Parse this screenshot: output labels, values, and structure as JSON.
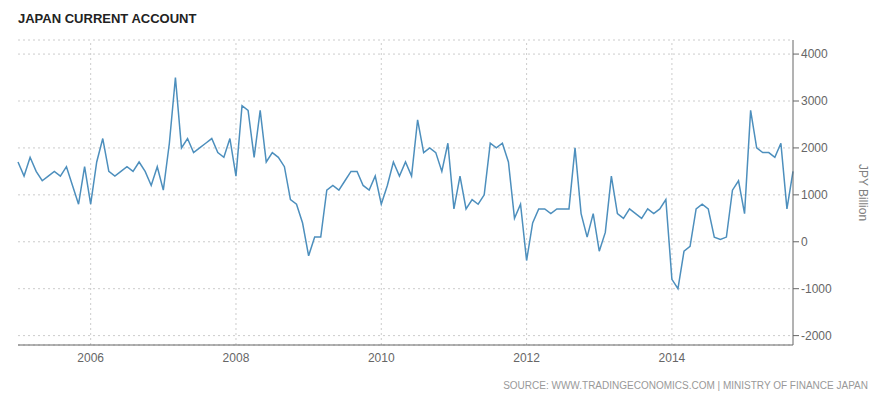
{
  "chart_data": {
    "type": "line",
    "title": "JAPAN CURRENT ACCOUNT",
    "ylabel": "JPY Billion",
    "annotations": [
      "SOURCE: WWW.TRADINGECONOMICS.COM | MINISTRY OF FINANCE JAPAN"
    ],
    "color": "#4d8fbd",
    "grid": true,
    "ylim": [
      -2200,
      4300
    ],
    "yticks": [
      -2000,
      -1000,
      0,
      1000,
      2000,
      3000,
      4000
    ],
    "categories": [
      null,
      null,
      null,
      null,
      null,
      null,
      null,
      null,
      null,
      null,
      null,
      null,
      "2006",
      null,
      null,
      null,
      null,
      null,
      null,
      null,
      null,
      null,
      null,
      null,
      null,
      null,
      null,
      null,
      null,
      null,
      null,
      null,
      null,
      null,
      null,
      null,
      "2008",
      null,
      null,
      null,
      null,
      null,
      null,
      null,
      null,
      null,
      null,
      null,
      null,
      null,
      null,
      null,
      null,
      null,
      null,
      null,
      null,
      null,
      null,
      null,
      "2010",
      null,
      null,
      null,
      null,
      null,
      null,
      null,
      null,
      null,
      null,
      null,
      null,
      null,
      null,
      null,
      null,
      null,
      null,
      null,
      null,
      null,
      null,
      null,
      "2012",
      null,
      null,
      null,
      null,
      null,
      null,
      null,
      null,
      null,
      null,
      null,
      null,
      null,
      null,
      null,
      null,
      null,
      null,
      null,
      null,
      null,
      null,
      null,
      "2014",
      null,
      null,
      null,
      null,
      null,
      null,
      null,
      null,
      null,
      null,
      null,
      null,
      null,
      null,
      null,
      null,
      null,
      null,
      null,
      null
    ],
    "values": [
      1700,
      1400,
      1800,
      1500,
      1300,
      1400,
      1500,
      1400,
      1600,
      1200,
      800,
      1600,
      800,
      1700,
      2200,
      1500,
      1400,
      1500,
      1600,
      1500,
      1700,
      1500,
      1200,
      1600,
      1100,
      2100,
      3500,
      2000,
      2200,
      1900,
      2000,
      2100,
      2200,
      1900,
      1800,
      2200,
      1400,
      2900,
      2800,
      1800,
      2800,
      1700,
      1900,
      1800,
      1600,
      900,
      800,
      400,
      -300,
      100,
      100,
      1100,
      1200,
      1100,
      1300,
      1500,
      1500,
      1200,
      1100,
      1400,
      800,
      1200,
      1700,
      1400,
      1700,
      1400,
      2600,
      1900,
      2000,
      1900,
      1500,
      2100,
      700,
      1400,
      700,
      900,
      800,
      1000,
      2100,
      2000,
      2100,
      1700,
      500,
      800,
      -400,
      400,
      700,
      700,
      600,
      700,
      700,
      700,
      2000,
      600,
      100,
      600,
      -200,
      200,
      1400,
      600,
      500,
      700,
      600,
      500,
      700,
      600,
      700,
      900,
      -800,
      -1000,
      -200,
      -100,
      700,
      800,
      700,
      100,
      50,
      100,
      1100,
      1300,
      600,
      2800,
      2000,
      1900,
      1900,
      1800,
      2100,
      700,
      1500
    ]
  }
}
